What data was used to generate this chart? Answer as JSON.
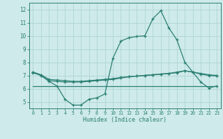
{
  "x": [
    0,
    1,
    2,
    3,
    4,
    5,
    6,
    7,
    8,
    9,
    10,
    11,
    12,
    13,
    14,
    15,
    16,
    17,
    18,
    19,
    20,
    21,
    22,
    23
  ],
  "line1": [
    7.25,
    7.0,
    6.55,
    6.2,
    5.2,
    4.75,
    4.75,
    5.2,
    5.3,
    5.6,
    8.3,
    9.6,
    9.85,
    9.95,
    10.0,
    11.3,
    11.9,
    10.6,
    9.7,
    8.0,
    7.25,
    6.5,
    6.05,
    6.2
  ],
  "line2": [
    7.2,
    7.0,
    6.6,
    6.55,
    6.5,
    6.5,
    6.5,
    6.55,
    6.6,
    6.65,
    6.7,
    6.8,
    6.9,
    6.95,
    7.0,
    7.05,
    7.1,
    7.15,
    7.2,
    7.35,
    7.25,
    7.1,
    7.0,
    6.95
  ],
  "line3": [
    7.25,
    7.05,
    6.7,
    6.65,
    6.6,
    6.55,
    6.55,
    6.6,
    6.65,
    6.7,
    6.75,
    6.85,
    6.9,
    6.95,
    7.0,
    7.05,
    7.1,
    7.15,
    7.25,
    7.35,
    7.25,
    7.15,
    7.05,
    7.0
  ],
  "line4_flat": [
    6.2,
    6.2,
    6.2,
    6.2,
    6.2,
    6.2,
    6.2,
    6.2,
    6.2,
    6.2,
    6.2,
    6.2,
    6.2,
    6.2,
    6.2,
    6.2,
    6.2,
    6.2,
    6.2,
    6.2,
    6.2,
    6.2,
    6.2,
    6.2
  ],
  "line_color": "#2a7f72",
  "bg_color": "#ceeaea",
  "grid_color": "#afd4d4",
  "xlabel": "Humidex (Indice chaleur)",
  "ylim": [
    4.5,
    12.5
  ],
  "xlim": [
    -0.5,
    23.5
  ],
  "yticks": [
    5,
    6,
    7,
    8,
    9,
    10,
    11,
    12
  ],
  "xticks": [
    0,
    1,
    2,
    3,
    4,
    5,
    6,
    7,
    8,
    9,
    10,
    11,
    12,
    13,
    14,
    15,
    16,
    17,
    18,
    19,
    20,
    21,
    22,
    23
  ]
}
